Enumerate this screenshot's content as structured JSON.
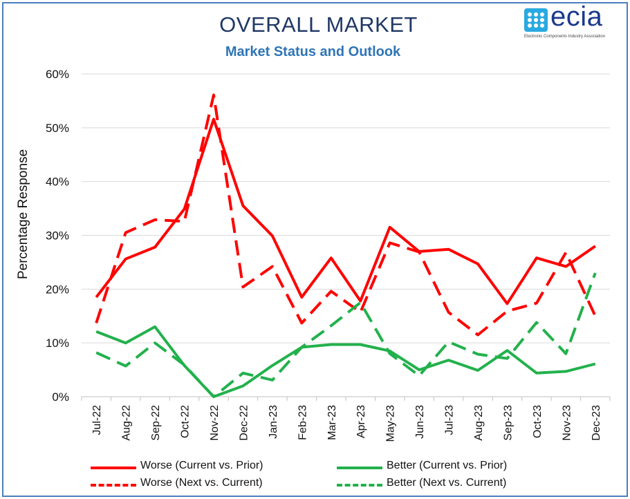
{
  "title": "OVERALL MARKET",
  "subtitle": "Market Status and Outlook",
  "logo": {
    "text": "ecia",
    "tagline": "Electronic Components Industry Association"
  },
  "colors": {
    "red": "#ff0000",
    "green": "#22b14c",
    "title": "#1f3864",
    "subtitle": "#2e75b6",
    "border": "#4a7ebb"
  },
  "chart_data": {
    "type": "line",
    "title": "OVERALL MARKET",
    "subtitle": "Market Status and Outlook",
    "xlabel": "",
    "ylabel": "Percentage Response",
    "ylim": [
      0,
      60
    ],
    "yticks": [
      "0%",
      "10%",
      "20%",
      "30%",
      "40%",
      "50%",
      "60%"
    ],
    "grid": "horizontal",
    "legend_position": "bottom",
    "categories": [
      "Jul-22",
      "Aug-22",
      "Sep-22",
      "Oct-22",
      "Nov-22",
      "Dec-22",
      "Jan-23",
      "Feb-23",
      "Mar-23",
      "Apr-23",
      "May-23",
      "Jun-23",
      "Jul-23",
      "Aug-23",
      "Sep-23",
      "Oct-23",
      "Nov-23",
      "Dec-23"
    ],
    "series": [
      {
        "name": "Worse (Current vs. Prior)",
        "color": "#ff0000",
        "dash": "solid",
        "values": [
          18.5,
          25.6,
          27.8,
          34.9,
          51.6,
          35.5,
          29.9,
          18.5,
          25.8,
          17.8,
          31.5,
          27.0,
          27.4,
          24.7,
          17.3,
          25.8,
          24.2,
          28.0
        ]
      },
      {
        "name": "Better (Current vs. Prior)",
        "color": "#22b14c",
        "dash": "solid",
        "values": [
          12.1,
          10.0,
          13.0,
          5.8,
          0.0,
          2.0,
          5.8,
          9.2,
          9.7,
          9.7,
          8.5,
          5.0,
          6.8,
          4.9,
          8.6,
          4.4,
          4.7,
          6.1
        ]
      },
      {
        "name": "Worse (Next vs. Current)",
        "color": "#ff0000",
        "dash": "dashed",
        "values": [
          13.7,
          30.5,
          32.9,
          32.6,
          56.1,
          20.4,
          24.2,
          13.7,
          19.6,
          15.7,
          28.6,
          26.9,
          15.7,
          11.5,
          15.9,
          17.4,
          26.8,
          15.0
        ]
      },
      {
        "name": "Better (Next vs. Current)",
        "color": "#22b14c",
        "dash": "dashed",
        "values": [
          8.2,
          5.7,
          10.0,
          5.9,
          0.0,
          4.4,
          3.1,
          9.2,
          13.2,
          17.5,
          8.0,
          3.9,
          10.2,
          7.9,
          7.1,
          13.8,
          8.0,
          23.0
        ]
      }
    ]
  }
}
